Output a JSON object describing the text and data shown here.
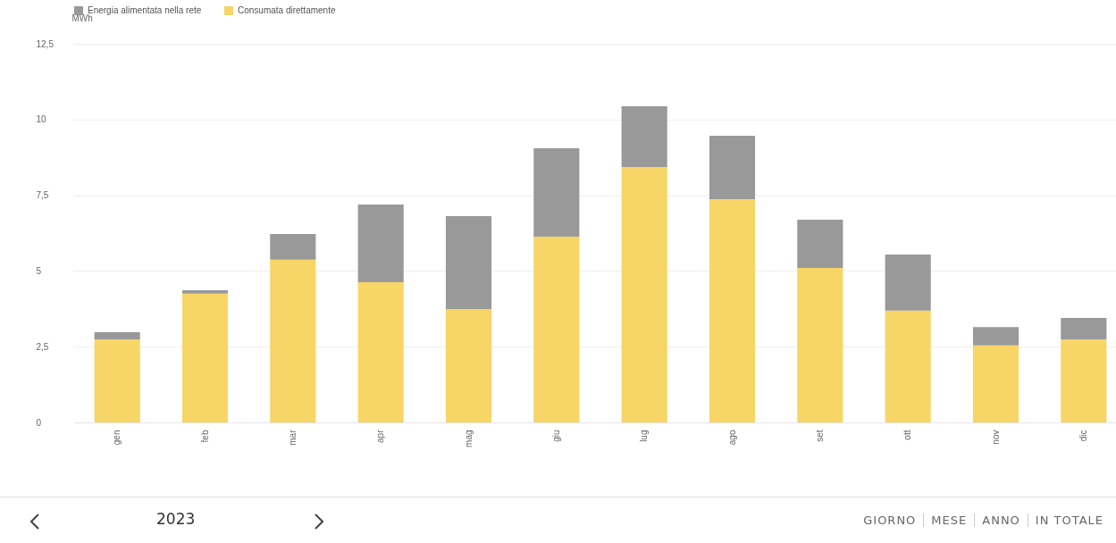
{
  "chart_data": {
    "type": "bar",
    "stacked": true,
    "ylabel": "MWh",
    "categories": [
      "gen",
      "feb",
      "mar",
      "apr",
      "mag",
      "giu",
      "lug",
      "ago",
      "set",
      "ott",
      "nov",
      "dic"
    ],
    "series": [
      {
        "name": "Consumata direttamente",
        "color": "#f7d566",
        "values": [
          2.74,
          4.25,
          5.37,
          4.63,
          3.74,
          6.13,
          8.43,
          7.37,
          5.1,
          3.69,
          2.54,
          2.74
        ]
      },
      {
        "name": "Energia alimentata nella rete",
        "color": "#999999",
        "values": [
          0.24,
          0.11,
          0.85,
          2.56,
          3.07,
          2.92,
          2.01,
          2.09,
          1.59,
          1.85,
          0.61,
          0.71
        ]
      }
    ],
    "ylim": [
      0,
      12.5
    ],
    "yticks": [
      0,
      {
        "value": 2.5,
        "label": "2,5"
      },
      5,
      {
        "value": 7.5,
        "label": "7,5"
      },
      10,
      {
        "value": 12.5,
        "label": "12,5"
      }
    ],
    "grid": "y",
    "legend": "top",
    "annotations": [
      "2023",
      "GIORNO",
      "MESE",
      "ANNO",
      "IN TOTALE"
    ]
  }
}
